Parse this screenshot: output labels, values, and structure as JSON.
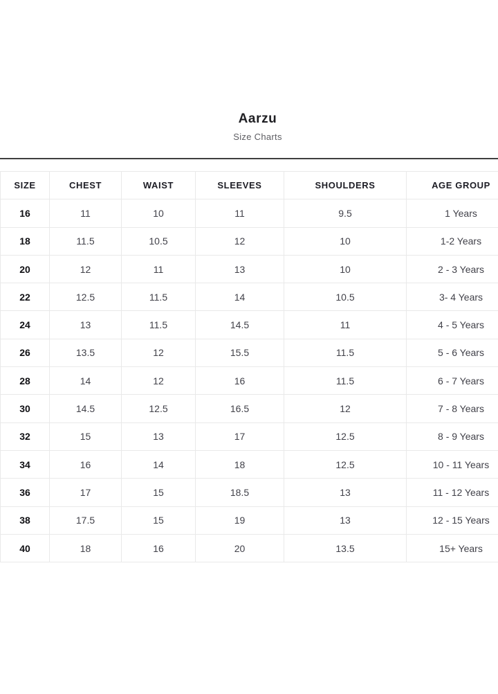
{
  "page": {
    "title": "Aarzu",
    "subtitle": "Size Charts"
  },
  "colors": {
    "divider": "#3f3f3f",
    "table_border": "#e9e9e9",
    "header_text": "#1c1c24",
    "cell_text": "#414149"
  },
  "chart_data": {
    "type": "table",
    "title": "Aarzu Size Charts",
    "columns": [
      "SIZE",
      "CHEST",
      "WAIST",
      "SLEEVES",
      "SHOULDERS",
      "AGE GROUP"
    ],
    "rows": [
      [
        "16",
        "11",
        "10",
        "11",
        "9.5",
        "1 Years"
      ],
      [
        "18",
        "11.5",
        "10.5",
        "12",
        "10",
        "1-2 Years"
      ],
      [
        "20",
        "12",
        "11",
        "13",
        "10",
        "2 - 3 Years"
      ],
      [
        "22",
        "12.5",
        "11.5",
        "14",
        "10.5",
        "3- 4 Years"
      ],
      [
        "24",
        "13",
        "11.5",
        "14.5",
        "11",
        "4 - 5 Years"
      ],
      [
        "26",
        "13.5",
        "12",
        "15.5",
        "11.5",
        "5 - 6 Years"
      ],
      [
        "28",
        "14",
        "12",
        "16",
        "11.5",
        "6 - 7 Years"
      ],
      [
        "30",
        "14.5",
        "12.5",
        "16.5",
        "12",
        "7 - 8 Years"
      ],
      [
        "32",
        "15",
        "13",
        "17",
        "12.5",
        "8 - 9 Years"
      ],
      [
        "34",
        "16",
        "14",
        "18",
        "12.5",
        "10 - 11 Years"
      ],
      [
        "36",
        "17",
        "15",
        "18.5",
        "13",
        "11 - 12 Years"
      ],
      [
        "38",
        "17.5",
        "15",
        "19",
        "13",
        "12 - 15 Years"
      ],
      [
        "40",
        "18",
        "16",
        "20",
        "13.5",
        "15+ Years"
      ]
    ]
  }
}
